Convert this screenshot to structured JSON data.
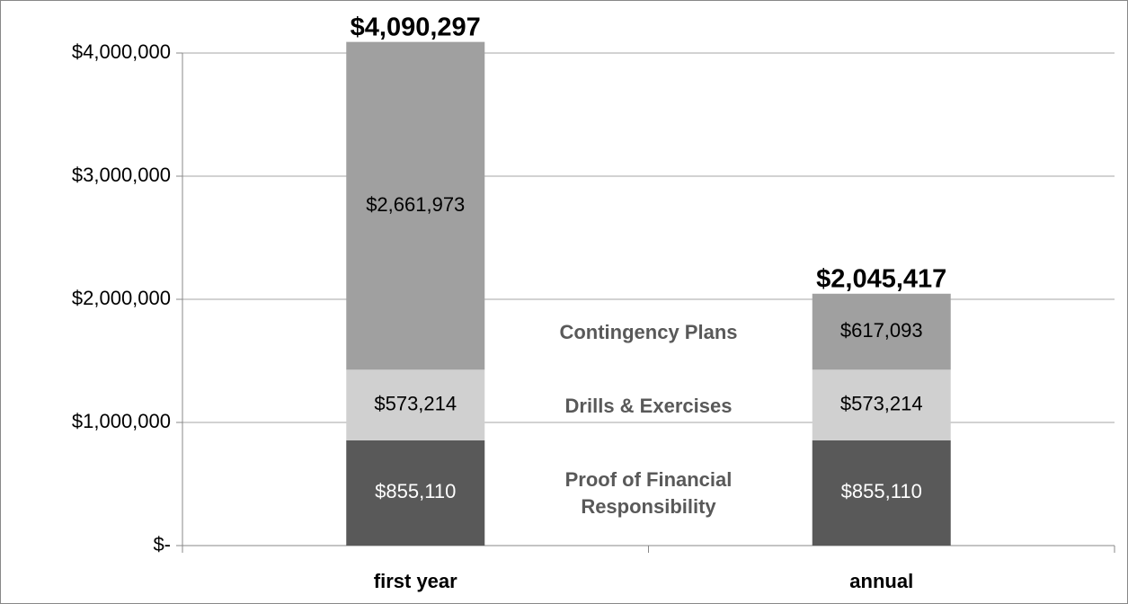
{
  "chart_data": {
    "type": "stacked_bar",
    "categories": [
      "first year",
      "annual"
    ],
    "series": [
      {
        "name": "Proof of Financial Responsibility",
        "color": "#595959",
        "label_color": "#ffffff",
        "values": [
          855110,
          855110
        ],
        "value_labels": [
          "$855,110",
          "$855,110"
        ]
      },
      {
        "name": "Drills & Exercises",
        "color": "#d0d0d0",
        "label_color": "#000000",
        "values": [
          573214,
          573214
        ],
        "value_labels": [
          "$573,214",
          "$573,214"
        ]
      },
      {
        "name": "Contingency Plans",
        "color": "#a0a0a0",
        "label_color": "#000000",
        "values": [
          2661973,
          617093
        ],
        "value_labels": [
          "$2,661,973",
          "$617,093"
        ]
      }
    ],
    "totals": [
      4090297,
      2045417
    ],
    "total_labels": [
      "$4,090,297",
      "$2,045,417"
    ],
    "ylim": [
      0,
      4000000
    ],
    "yticks": [
      {
        "value": 0,
        "label": "$-"
      },
      {
        "value": 1000000,
        "label": "$1,000,000"
      },
      {
        "value": 2000000,
        "label": "$2,000,000"
      },
      {
        "value": 3000000,
        "label": "$3,000,000"
      },
      {
        "value": 4000000,
        "label": "$4,000,000"
      }
    ],
    "grid": true
  }
}
